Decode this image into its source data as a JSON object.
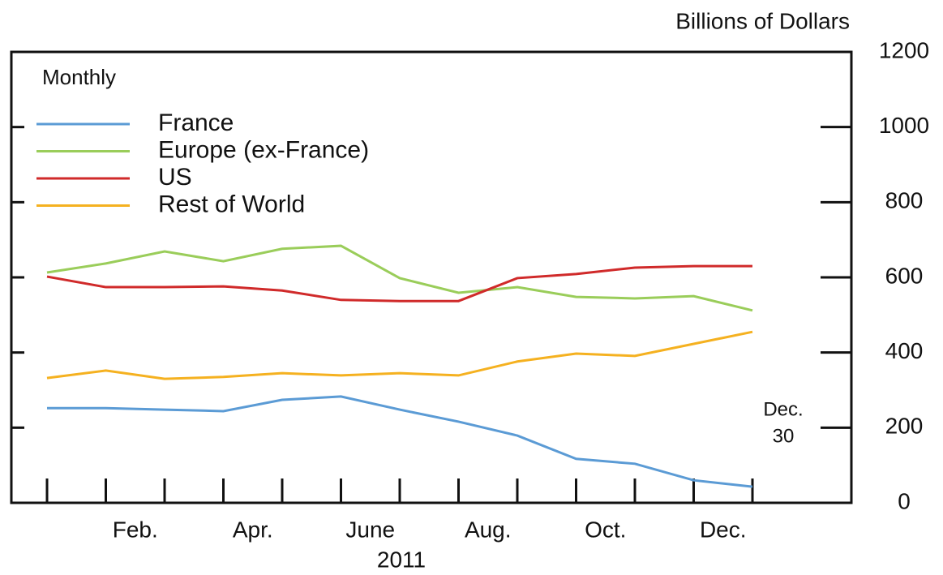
{
  "chart_data": {
    "type": "line",
    "y_axis_label": "Billions of Dollars",
    "annotation_frequency": "Monthly",
    "annotation_end": "Dec.",
    "annotation_end_day": "30",
    "x_axis_label": "2011",
    "categories": [
      null,
      null,
      null,
      null,
      null,
      null,
      null,
      null,
      null,
      null,
      null,
      null,
      null
    ],
    "month_labels": [
      "Feb.",
      "Apr.",
      "June",
      "Aug.",
      "Oct.",
      "Dec."
    ],
    "series": [
      {
        "name": "France",
        "color": "#5b9bd5",
        "values": [
          252,
          252,
          248,
          244,
          274,
          283,
          248,
          216,
          179,
          117,
          104,
          60,
          43
        ]
      },
      {
        "name": "Europe (ex-France)",
        "color": "#9acd5a",
        "values": [
          613,
          637,
          669,
          643,
          676,
          684,
          598,
          559,
          574,
          548,
          544,
          550,
          512
        ]
      },
      {
        "name": "US",
        "color": "#d02a2a",
        "values": [
          602,
          574,
          574,
          576,
          565,
          540,
          537,
          537,
          598,
          609,
          626,
          630,
          630
        ]
      },
      {
        "name": "Rest of World",
        "color": "#f5b120",
        "values": [
          332,
          352,
          330,
          335,
          345,
          339,
          345,
          339,
          376,
          397,
          391,
          423,
          455
        ]
      }
    ],
    "ylim": [
      0,
      1200
    ],
    "yticks": [
      0,
      200,
      400,
      600,
      800,
      1000,
      1200
    ],
    "legend": "upper left"
  }
}
